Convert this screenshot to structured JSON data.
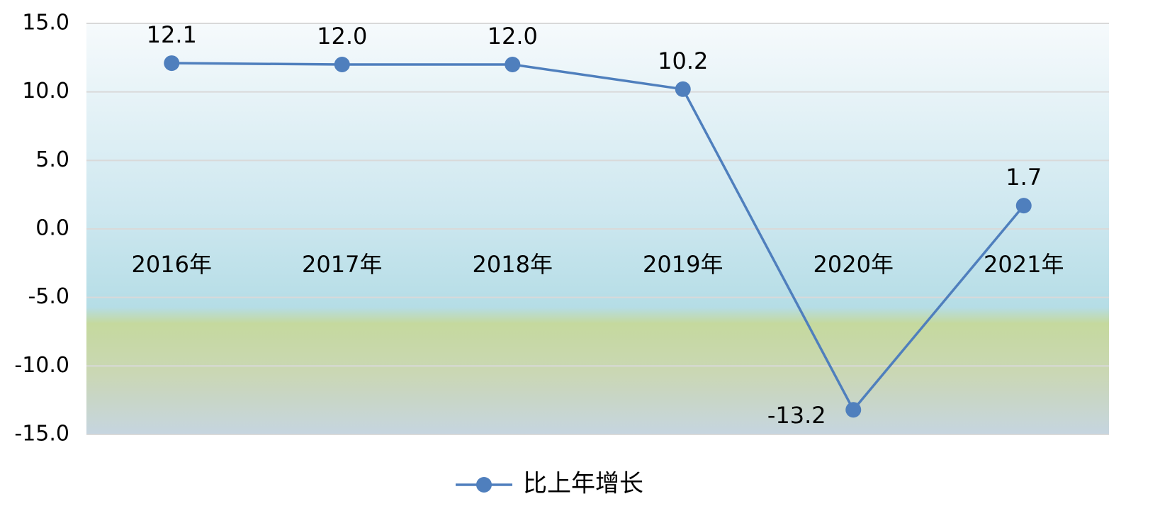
{
  "chart_data": {
    "type": "line",
    "categories": [
      "2016年",
      "2017年",
      "2018年",
      "2019年",
      "2020年",
      "2021年"
    ],
    "series": [
      {
        "name": "比上年增长",
        "color": "#4f7fbd",
        "values": [
          12.1,
          12.0,
          12.0,
          10.2,
          -13.2,
          1.7
        ],
        "value_labels": [
          "12.1",
          "12.0",
          "12.0",
          "10.2",
          "-13.2",
          "1.7"
        ]
      }
    ],
    "ylim": [
      -15,
      15
    ],
    "yticks": [
      {
        "value": -15,
        "label": "-15.0"
      },
      {
        "value": -10,
        "label": "-10.0"
      },
      {
        "value": -5,
        "label": "-5.0"
      },
      {
        "value": 0,
        "label": "0.0"
      },
      {
        "value": 5,
        "label": "5.0"
      },
      {
        "value": 10,
        "label": "10.0"
      },
      {
        "value": 15,
        "label": "15.0"
      }
    ],
    "grid": true,
    "legend": "bottom"
  }
}
